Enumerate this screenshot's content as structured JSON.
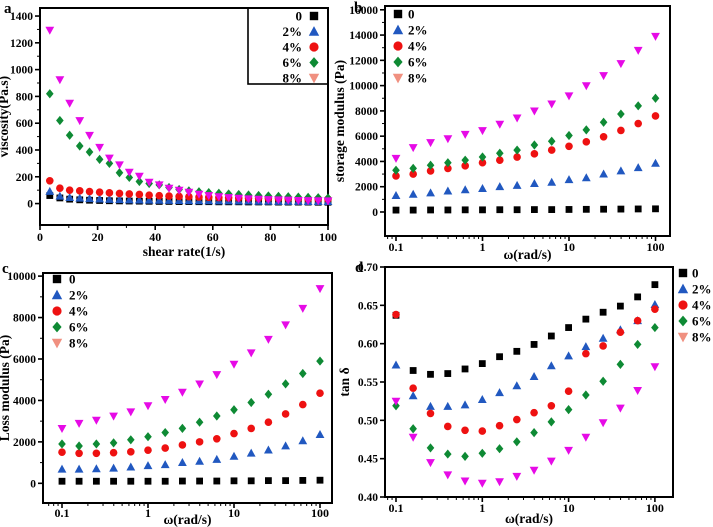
{
  "figure": {
    "panels": [
      {
        "letter": "a"
      },
      {
        "letter": "b"
      },
      {
        "letter": "c"
      },
      {
        "letter": "d"
      }
    ]
  },
  "colors": {
    "series_0": "#000000",
    "series_2pct": "#2158c0",
    "series_4pct": "#ee1111",
    "series_6pct": "#0e8a34",
    "series_8pct": "#e60ae6",
    "legend_8pct_marker": "#f09080",
    "axis": "#000000"
  },
  "chart_data": [
    {
      "id": "a",
      "type": "scatter",
      "title": "",
      "xlabel": "shear rate(1/s)",
      "ylabel": "viscosity(Pa.s)",
      "xscale": "linear",
      "xlim": [
        0,
        100
      ],
      "ylim": [
        -160,
        1460
      ],
      "xticks": [
        0,
        20,
        40,
        60,
        80,
        100
      ],
      "xtick_labels": [
        "0",
        "20",
        "40",
        "60",
        "80",
        "100"
      ],
      "x_minor_step": 10,
      "yticks": [
        0,
        200,
        400,
        600,
        800,
        1000,
        1200,
        1400
      ],
      "ytick_labels": [
        "0",
        "200",
        "400",
        "600",
        "800",
        "1000",
        "1200",
        "1400"
      ],
      "y_minor_step": 100,
      "grid": false,
      "legend": {
        "position": "inside-top-right",
        "marker_side": "right",
        "framed": true,
        "entries": [
          {
            "label": "0",
            "marker": "square",
            "color": "#000000"
          },
          {
            "label": "2%",
            "marker": "triangle-up",
            "color": "#2158c0"
          },
          {
            "label": "4%",
            "marker": "circle",
            "color": "#ee1111"
          },
          {
            "label": "6%",
            "marker": "diamond",
            "color": "#0e8a34"
          },
          {
            "label": "8%",
            "marker": "triangle-down",
            "color": "#f09080"
          }
        ]
      },
      "x": [
        3.4,
        6.9,
        10.3,
        13.8,
        17.2,
        20.7,
        24.1,
        27.6,
        31,
        34.5,
        37.9,
        41.4,
        44.8,
        48.3,
        51.7,
        55.2,
        58.6,
        62.1,
        65.5,
        69,
        72.4,
        75.9,
        79.3,
        82.8,
        86.2,
        89.7,
        93.1,
        96.6,
        100
      ],
      "series": [
        {
          "name": "0",
          "marker": "square",
          "color": "#000000",
          "values": [
            60,
            42,
            33,
            28,
            25,
            23,
            21,
            20,
            19,
            18,
            17,
            16,
            16,
            15,
            15,
            14,
            14,
            13,
            13,
            13,
            12,
            12,
            12,
            11,
            11,
            11,
            11,
            10,
            10
          ]
        },
        {
          "name": "2%",
          "marker": "triangle-up",
          "color": "#2158c0",
          "values": [
            90,
            55,
            45,
            40,
            36,
            33,
            31,
            29,
            27,
            26,
            25,
            24,
            23,
            22,
            21,
            20,
            20,
            19,
            19,
            18,
            18,
            17,
            17,
            16,
            16,
            16,
            15,
            15,
            15
          ]
        },
        {
          "name": "4%",
          "marker": "circle",
          "color": "#ee1111",
          "values": [
            170,
            115,
            100,
            95,
            90,
            85,
            80,
            76,
            72,
            68,
            63,
            59,
            56,
            53,
            51,
            49,
            47,
            45,
            43,
            42,
            41,
            40,
            39,
            38,
            37,
            36,
            35,
            35,
            34
          ]
        },
        {
          "name": "6%",
          "marker": "diamond",
          "color": "#0e8a34",
          "values": [
            820,
            620,
            510,
            430,
            385,
            330,
            300,
            230,
            195,
            165,
            150,
            140,
            120,
            105,
            95,
            88,
            82,
            77,
            72,
            68,
            64,
            60,
            57,
            54,
            51,
            48,
            46,
            44,
            42
          ]
        },
        {
          "name": "8%",
          "marker": "triangle-down",
          "color": "#e60ae6",
          "values": [
            1295,
            925,
            750,
            620,
            510,
            420,
            340,
            290,
            235,
            205,
            160,
            140,
            115,
            100,
            85,
            70,
            60,
            52,
            45,
            40,
            36,
            33,
            30,
            28,
            26,
            24,
            23,
            22,
            21
          ]
        }
      ]
    },
    {
      "id": "b",
      "type": "scatter",
      "title": "",
      "xlabel": "ω(rad/s)",
      "ylabel": "storage modulus (Pa)",
      "xscale": "log",
      "xlim": [
        0.075,
        147
      ],
      "ylim": [
        -1900,
        16300
      ],
      "xticks": [
        0.1,
        1,
        10,
        100
      ],
      "xtick_labels": [
        "0.1",
        "1",
        "10",
        "100"
      ],
      "yticks": [
        0,
        2000,
        4000,
        6000,
        8000,
        10000,
        12000,
        14000,
        16000
      ],
      "ytick_labels": [
        "0",
        "2000",
        "4000",
        "6000",
        "8000",
        "10000",
        "12000",
        "14000",
        "16000"
      ],
      "y_minor_step": 1000,
      "grid": false,
      "legend": {
        "position": "inside-top-left",
        "marker_side": "left",
        "framed": false,
        "entries": [
          {
            "label": "0",
            "marker": "square",
            "color": "#000000"
          },
          {
            "label": "2%",
            "marker": "triangle-up",
            "color": "#2158c0"
          },
          {
            "label": "4%",
            "marker": "circle",
            "color": "#ee1111"
          },
          {
            "label": "6%",
            "marker": "diamond",
            "color": "#0e8a34"
          },
          {
            "label": "8%",
            "marker": "triangle-down",
            "color": "#f09080"
          }
        ]
      },
      "x": [
        0.1,
        0.158,
        0.251,
        0.398,
        0.631,
        1,
        1.585,
        2.512,
        3.981,
        6.31,
        10,
        15.849,
        25.119,
        39.811,
        63.096,
        100
      ],
      "series": [
        {
          "name": "0",
          "marker": "square",
          "color": "#000000",
          "values": [
            150,
            150,
            160,
            160,
            170,
            170,
            180,
            180,
            190,
            190,
            200,
            210,
            220,
            230,
            240,
            250
          ]
        },
        {
          "name": "2%",
          "marker": "triangle-up",
          "color": "#2158c0",
          "values": [
            1300,
            1400,
            1500,
            1650,
            1750,
            1850,
            2000,
            2100,
            2250,
            2350,
            2550,
            2700,
            3000,
            3250,
            3500,
            3850
          ]
        },
        {
          "name": "4%",
          "marker": "circle",
          "color": "#ee1111",
          "values": [
            2850,
            3000,
            3250,
            3450,
            3650,
            3900,
            4100,
            4350,
            4600,
            4900,
            5200,
            5550,
            5950,
            6450,
            7000,
            7600
          ]
        },
        {
          "name": "6%",
          "marker": "diamond",
          "color": "#0e8a34",
          "values": [
            3300,
            3450,
            3700,
            3900,
            4100,
            4350,
            4650,
            4900,
            5300,
            5600,
            6050,
            6500,
            7100,
            7750,
            8400,
            9000
          ]
        },
        {
          "name": "8%",
          "marker": "triangle-down",
          "color": "#e60ae6",
          "values": [
            4250,
            5100,
            5500,
            5800,
            6150,
            6450,
            6950,
            7450,
            8000,
            8550,
            9200,
            10000,
            10800,
            11750,
            12800,
            13900
          ]
        }
      ]
    },
    {
      "id": "c",
      "type": "scatter",
      "title": "",
      "xlabel": "ω(rad/s)",
      "ylabel": "Loss modulus (Pa)",
      "xscale": "log",
      "xlim": [
        0.06,
        137
      ],
      "ylim": [
        -950,
        10150
      ],
      "xticks": [
        0.1,
        1,
        10,
        100
      ],
      "xtick_labels": [
        "0.1",
        "1",
        "10",
        "100"
      ],
      "yticks": [
        0,
        2000,
        4000,
        6000,
        8000,
        10000
      ],
      "ytick_labels": [
        "0",
        "2000",
        "4000",
        "6000",
        "8000",
        "10000"
      ],
      "y_minor_step": 1000,
      "grid": false,
      "legend": {
        "position": "inside-top-left",
        "marker_side": "left",
        "framed": false,
        "entries": [
          {
            "label": "0",
            "marker": "square",
            "color": "#000000"
          },
          {
            "label": "2%",
            "marker": "triangle-up",
            "color": "#2158c0"
          },
          {
            "label": "4%",
            "marker": "circle",
            "color": "#ee1111"
          },
          {
            "label": "6%",
            "marker": "diamond",
            "color": "#0e8a34"
          },
          {
            "label": "8%",
            "marker": "triangle-down",
            "color": "#f09080"
          }
        ]
      },
      "x": [
        0.1,
        0.158,
        0.251,
        0.398,
        0.631,
        1,
        1.585,
        2.512,
        3.981,
        6.31,
        10,
        15.849,
        25.119,
        39.811,
        63.096,
        100
      ],
      "series": [
        {
          "name": "0",
          "marker": "square",
          "color": "#000000",
          "values": [
            100,
            100,
            100,
            100,
            100,
            100,
            100,
            110,
            110,
            110,
            120,
            120,
            130,
            130,
            140,
            150
          ]
        },
        {
          "name": "2%",
          "marker": "triangle-up",
          "color": "#2158c0",
          "values": [
            680,
            680,
            700,
            730,
            780,
            850,
            900,
            1000,
            1060,
            1150,
            1300,
            1450,
            1600,
            1800,
            2050,
            2350
          ]
        },
        {
          "name": "4%",
          "marker": "circle",
          "color": "#ee1111",
          "values": [
            1500,
            1450,
            1450,
            1480,
            1520,
            1600,
            1700,
            1850,
            2000,
            2150,
            2400,
            2650,
            2950,
            3350,
            3800,
            4350
          ]
        },
        {
          "name": "6%",
          "marker": "diamond",
          "color": "#0e8a34",
          "values": [
            1900,
            1800,
            1900,
            1950,
            2100,
            2250,
            2450,
            2650,
            2950,
            3250,
            3550,
            3900,
            4300,
            4800,
            5300,
            5900
          ]
        },
        {
          "name": "8%",
          "marker": "triangle-down",
          "color": "#e60ae6",
          "values": [
            2650,
            2900,
            3050,
            3250,
            3450,
            3750,
            4050,
            4400,
            4800,
            5250,
            5750,
            6300,
            6950,
            7650,
            8450,
            9400
          ]
        }
      ]
    },
    {
      "id": "d",
      "type": "scatter",
      "title": "",
      "xlabel": "ω(rad/s)",
      "ylabel": "tan δ",
      "xscale": "log",
      "xlim": [
        0.075,
        160
      ],
      "ylim": [
        0.4,
        0.7
      ],
      "xticks": [
        0.1,
        1,
        10,
        100
      ],
      "xtick_labels": [
        "0.1",
        "1",
        "10",
        "100"
      ],
      "yticks": [
        0.4,
        0.45,
        0.5,
        0.55,
        0.6,
        0.65,
        0.7
      ],
      "ytick_labels": [
        "0.40",
        "0.45",
        "0.50",
        "0.55",
        "0.60",
        "0.65",
        "0.70"
      ],
      "grid": false,
      "legend": {
        "position": "outside-top-right",
        "marker_side": "left",
        "framed": false,
        "entries": [
          {
            "label": "0",
            "marker": "square",
            "color": "#000000"
          },
          {
            "label": "2%",
            "marker": "triangle-up",
            "color": "#2158c0"
          },
          {
            "label": "4%",
            "marker": "circle",
            "color": "#ee1111"
          },
          {
            "label": "6%",
            "marker": "diamond",
            "color": "#0e8a34"
          },
          {
            "label": "8%",
            "marker": "triangle-down",
            "color": "#f09080"
          }
        ]
      },
      "x": [
        0.1,
        0.158,
        0.251,
        0.398,
        0.631,
        1,
        1.585,
        2.512,
        3.981,
        6.31,
        10,
        15.849,
        25.119,
        39.811,
        63.096,
        100
      ],
      "series": [
        {
          "name": "0",
          "marker": "square",
          "color": "#000000",
          "values": [
            0.637,
            0.565,
            0.56,
            0.561,
            0.567,
            0.574,
            0.583,
            0.59,
            0.599,
            0.61,
            0.621,
            0.632,
            0.641,
            0.649,
            0.661,
            0.677
          ]
        },
        {
          "name": "2%",
          "marker": "triangle-up",
          "color": "#2158c0",
          "values": [
            0.572,
            0.532,
            0.518,
            0.518,
            0.52,
            0.527,
            0.536,
            0.545,
            0.557,
            0.571,
            0.584,
            0.596,
            0.607,
            0.618,
            0.63,
            0.651
          ]
        },
        {
          "name": "4%",
          "marker": "circle",
          "color": "#ee1111",
          "values": [
            0.638,
            0.542,
            0.509,
            0.492,
            0.487,
            0.486,
            0.493,
            0.501,
            0.51,
            0.519,
            0.538,
            0.587,
            0.597,
            0.615,
            0.63,
            0.645
          ]
        },
        {
          "name": "6%",
          "marker": "diamond",
          "color": "#0e8a34",
          "values": [
            0.519,
            0.489,
            0.464,
            0.456,
            0.453,
            0.457,
            0.463,
            0.472,
            0.484,
            0.498,
            0.514,
            0.533,
            0.551,
            0.573,
            0.599,
            0.621
          ]
        },
        {
          "name": "8%",
          "marker": "triangle-down",
          "color": "#e60ae6",
          "values": [
            0.525,
            0.478,
            0.445,
            0.429,
            0.421,
            0.418,
            0.42,
            0.427,
            0.435,
            0.447,
            0.461,
            0.478,
            0.497,
            0.516,
            0.539,
            0.57
          ]
        }
      ]
    }
  ]
}
